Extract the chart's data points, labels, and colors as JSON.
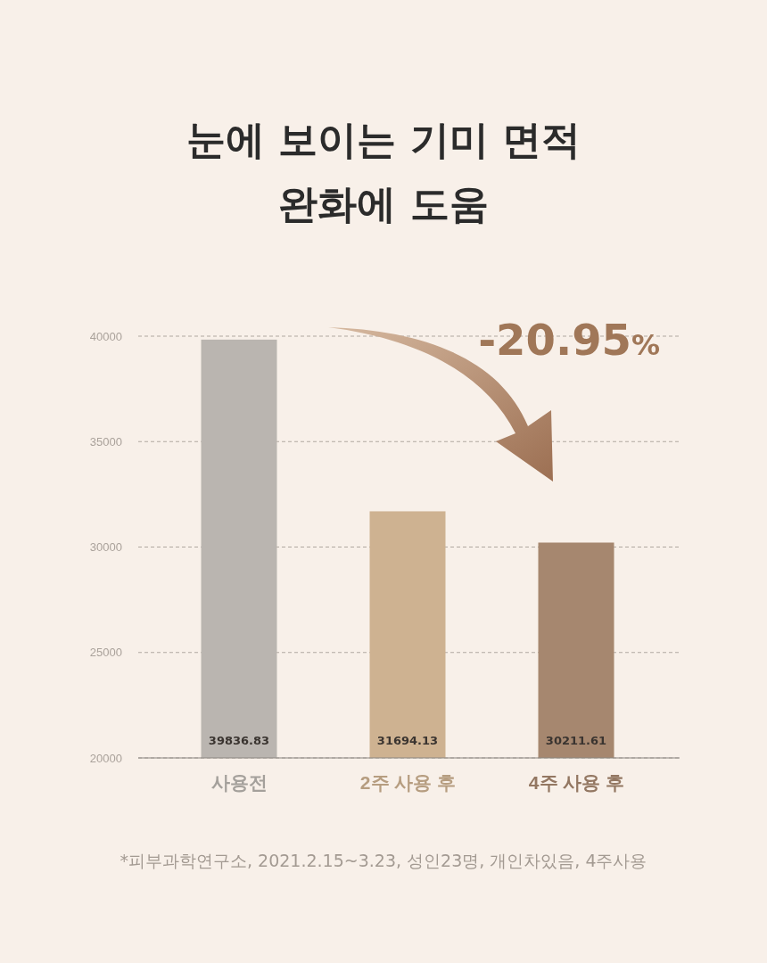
{
  "chart_data": {
    "type": "bar",
    "title": "눈에 보이는 기미 면적\n완화에 도움",
    "categories": [
      "사용전",
      "2주 사용 후",
      "4주 사용 후"
    ],
    "values": [
      39836.83,
      31694.13,
      30211.61
    ],
    "colors": [
      "#bab5b0",
      "#ceb291",
      "#a6876f"
    ],
    "ylim": [
      20000,
      40000
    ],
    "yticks": [
      20000,
      25000,
      30000,
      35000,
      40000
    ],
    "grid": "y",
    "data_labels": true,
    "annotations": [
      "-20.95%",
      "*피부과학연구소, 2021.2.15~3.23, 성인23명, 개인차있음, 4주사용"
    ]
  }
}
